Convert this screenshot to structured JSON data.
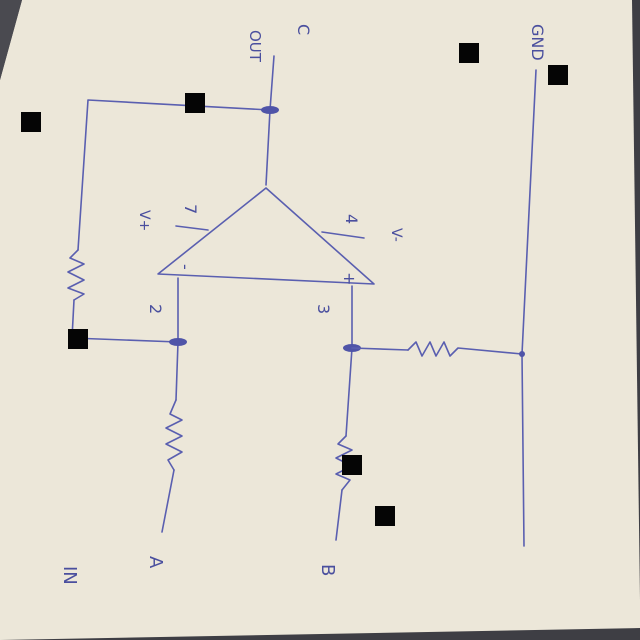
{
  "schematic": {
    "input_section_label": "IN",
    "input_a": "A",
    "input_b": "B",
    "output_label": "OUT",
    "output_node": "C",
    "ground_label": "GND",
    "supply_positive": "V+",
    "supply_negative": "V-",
    "pin_vplus": "7",
    "pin_vminus": "4",
    "pin_inverting": "2",
    "pin_noninverting": "3",
    "sign_inverting": "-",
    "sign_noninverting": "+"
  },
  "colors": {
    "paper": "#ece7d9",
    "ink": "#5a5fb0",
    "background": "#3e3e44",
    "marker": "#050505"
  }
}
